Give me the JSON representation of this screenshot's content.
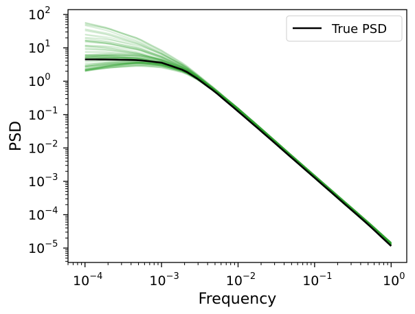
{
  "chart_data": {
    "type": "line",
    "title": "",
    "xlabel": "Frequency",
    "ylabel": "PSD",
    "xscale": "log",
    "yscale": "log",
    "xlim": [
      6e-05,
      1.6
    ],
    "ylim": [
      3.7e-06,
      140
    ],
    "grid": false,
    "legend": {
      "placement": "top-right",
      "entries": [
        "True PSD"
      ]
    },
    "x_ticks": [
      {
        "base": "10",
        "exp": "−4",
        "value": 0.0001
      },
      {
        "base": "10",
        "exp": "−3",
        "value": 0.001
      },
      {
        "base": "10",
        "exp": "−2",
        "value": 0.01
      },
      {
        "base": "10",
        "exp": "−1",
        "value": 0.1
      },
      {
        "base": "10",
        "exp": "0",
        "value": 1
      }
    ],
    "y_ticks": [
      {
        "base": "10",
        "exp": "−5",
        "value": 1e-05
      },
      {
        "base": "10",
        "exp": "−4",
        "value": 0.0001
      },
      {
        "base": "10",
        "exp": "−3",
        "value": 0.001
      },
      {
        "base": "10",
        "exp": "−2",
        "value": 0.01
      },
      {
        "base": "10",
        "exp": "−1",
        "value": 0.1
      },
      {
        "base": "10",
        "exp": "0",
        "value": 1
      },
      {
        "base": "10",
        "exp": "1",
        "value": 10
      },
      {
        "base": "10",
        "exp": "2",
        "value": 100
      }
    ],
    "series": [
      {
        "name": "True PSD",
        "color": "#000000",
        "x": [
          0.0001,
          0.0002,
          0.0005,
          0.001,
          0.002,
          0.003,
          0.005,
          0.01,
          0.02,
          0.05,
          0.1,
          0.2,
          0.5,
          1.0
        ],
        "y": [
          4.5,
          4.48,
          4.3,
          3.6,
          2.1,
          1.15,
          0.48,
          0.125,
          0.032,
          0.0051,
          0.00128,
          0.00032,
          5.1e-05,
          1.15e-05
        ]
      }
    ],
    "sample_band": {
      "color": "#2ca02c",
      "x": [
        0.0001,
        0.0002,
        0.0005,
        0.001,
        0.002,
        0.003,
        0.005,
        0.01,
        0.02,
        0.05,
        0.1,
        0.2,
        0.5,
        1.0
      ],
      "lower": [
        2.0,
        2.0,
        1.95,
        1.75,
        1.3,
        0.85,
        0.38,
        0.1,
        0.025,
        0.0039,
        0.00097,
        0.00024,
        3.9e-05,
        9.5e-06
      ],
      "upper": [
        60,
        52,
        30,
        13,
        4.5,
        2.0,
        0.75,
        0.2,
        0.05,
        0.0078,
        0.00195,
        0.00049,
        7.8e-05,
        1.85e-05
      ],
      "n_samples": 60
    }
  }
}
